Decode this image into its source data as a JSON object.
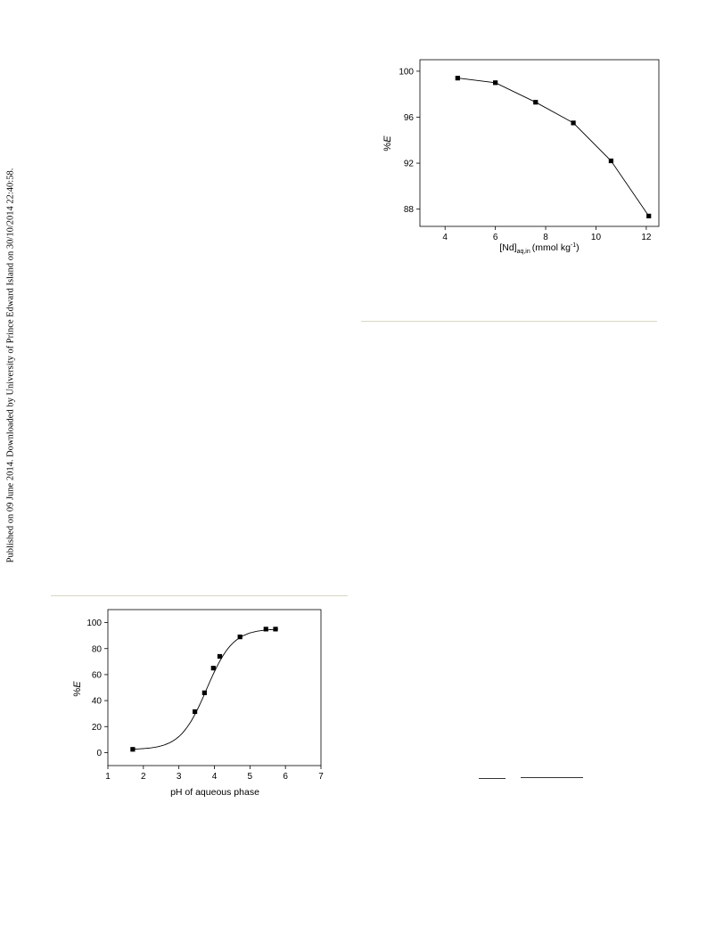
{
  "page": {
    "side_note": "Published on 09 June 2014. Downloaded by University of Prince Edward Island on 30/10/2014 22:40:58."
  },
  "chart_data": [
    {
      "type": "line",
      "x": [
        4.5,
        6.0,
        7.6,
        9.1,
        10.6,
        12.1
      ],
      "y": [
        99.4,
        99.0,
        97.3,
        95.5,
        92.2,
        87.4
      ],
      "xlim": [
        3,
        12.5
      ],
      "ylim": [
        86.5,
        101
      ],
      "xticks": [
        4,
        6,
        8,
        10,
        12
      ],
      "yticks": [
        88,
        92,
        96,
        100
      ],
      "ylabel": "%E",
      "xlabel": {
        "main": "[Nd]",
        "sub": "aq,in",
        "unit": "(mmol kg",
        "sup": "-1",
        "close": ")"
      }
    },
    {
      "type": "scatter",
      "x": [
        1.7,
        3.45,
        3.72,
        3.97,
        4.15,
        4.72,
        5.45,
        5.72
      ],
      "y": [
        2.5,
        31.5,
        46,
        65,
        74,
        89,
        95,
        95
      ],
      "xlim": [
        1,
        7
      ],
      "ylim": [
        -10,
        110
      ],
      "xticks": [
        1,
        2,
        3,
        4,
        5,
        6,
        7
      ],
      "yticks": [
        0,
        20,
        40,
        60,
        80,
        100
      ],
      "ylabel": "%E",
      "xlabel": "pH of aqueous phase",
      "fit_curve": "sigmoidal"
    }
  ]
}
